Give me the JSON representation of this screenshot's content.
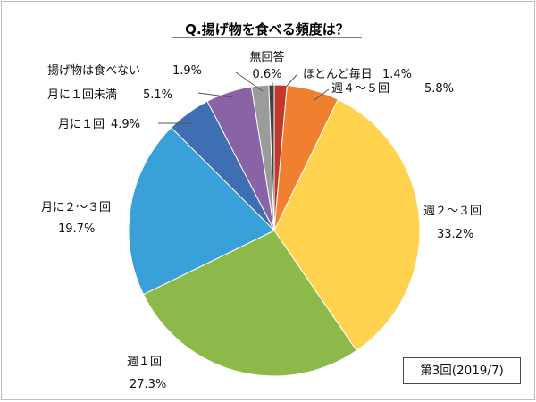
{
  "chart_data": {
    "type": "pie",
    "title": "Q.揚げ物を食べる頻度は？",
    "note": "第3回(2019/7)",
    "start_angle_deg": 0,
    "direction": "clockwise",
    "slices": [
      {
        "name": "ほとんど毎日",
        "value": 1.4,
        "value_label": "1.4%",
        "color": "#c0392b"
      },
      {
        "name": "週４～５回",
        "value": 5.8,
        "value_label": "5.8%",
        "color": "#f07f2f"
      },
      {
        "name": "週２～３回",
        "value": 33.2,
        "value_label": "33.2%",
        "color": "#ffd34e"
      },
      {
        "name": "週１回",
        "value": 27.3,
        "value_label": "27.3%",
        "color": "#8db94a"
      },
      {
        "name": "月に２～３回",
        "value": 19.7,
        "value_label": "19.7%",
        "color": "#3aa0d8"
      },
      {
        "name": "月に１回",
        "value": 4.9,
        "value_label": "4.9%",
        "color": "#3f6fb3"
      },
      {
        "name": "月に１回未満",
        "value": 5.1,
        "value_label": "5.1%",
        "color": "#8a62a6"
      },
      {
        "name": "揚げ物は食べない",
        "value": 1.9,
        "value_label": "1.9%",
        "color": "#9b9b9b"
      },
      {
        "name": "無回答",
        "value": 0.6,
        "value_label": "0.6%",
        "color": "#404040"
      }
    ]
  }
}
